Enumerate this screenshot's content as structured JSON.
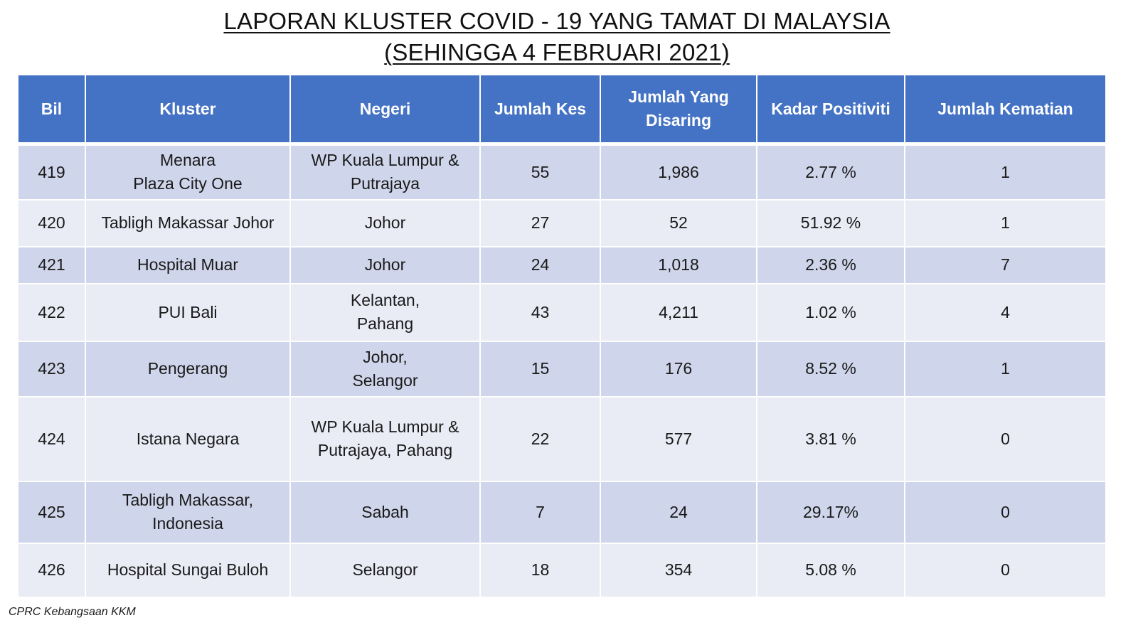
{
  "title": {
    "line1": "LAPORAN KLUSTER COVID - 19 YANG TAMAT DI MALAYSIA",
    "line2": "(SEHINGGA 4 FEBRUARI 2021)"
  },
  "table": {
    "headers": {
      "bil": "Bil",
      "kluster": "Kluster",
      "negeri": "Negeri",
      "jumlah_kes": "Jumlah Kes",
      "jumlah_disaring": "Jumlah Yang\nDisaring",
      "kadar_positiviti": "Kadar Positiviti",
      "jumlah_kematian": "Jumlah Kematian"
    },
    "rows": [
      {
        "bil": "419",
        "kluster": "Menara\nPlaza City One",
        "negeri": "WP Kuala Lumpur &\nPutrajaya",
        "jumlah_kes": "55",
        "jumlah_disaring": "1,986",
        "kadar_positiviti": "2.77 %",
        "jumlah_kematian": "1"
      },
      {
        "bil": "420",
        "kluster": "Tabligh Makassar Johor",
        "negeri": "Johor",
        "jumlah_kes": "27",
        "jumlah_disaring": "52",
        "kadar_positiviti": "51.92 %",
        "jumlah_kematian": "1"
      },
      {
        "bil": "421",
        "kluster": "Hospital Muar",
        "negeri": "Johor",
        "jumlah_kes": "24",
        "jumlah_disaring": "1,018",
        "kadar_positiviti": "2.36 %",
        "jumlah_kematian": "7"
      },
      {
        "bil": "422",
        "kluster": "PUI Bali",
        "negeri": "Kelantan,\nPahang",
        "jumlah_kes": "43",
        "jumlah_disaring": "4,211",
        "kadar_positiviti": "1.02 %",
        "jumlah_kematian": "4"
      },
      {
        "bil": "423",
        "kluster": "Pengerang",
        "negeri": "Johor,\nSelangor",
        "jumlah_kes": "15",
        "jumlah_disaring": "176",
        "kadar_positiviti": "8.52 %",
        "jumlah_kematian": "1"
      },
      {
        "bil": "424",
        "kluster": "Istana Negara",
        "negeri": "WP Kuala Lumpur &\nPutrajaya, Pahang",
        "jumlah_kes": "22",
        "jumlah_disaring": "577",
        "kadar_positiviti": "3.81 %",
        "jumlah_kematian": "0"
      },
      {
        "bil": "425",
        "kluster": "Tabligh Makassar,\nIndonesia",
        "negeri": "Sabah",
        "jumlah_kes": "7",
        "jumlah_disaring": "24",
        "kadar_positiviti": "29.17%",
        "jumlah_kematian": "0"
      },
      {
        "bil": "426",
        "kluster": "Hospital Sungai Buloh",
        "negeri": "Selangor",
        "jumlah_kes": "18",
        "jumlah_disaring": "354",
        "kadar_positiviti": "5.08 %",
        "jumlah_kematian": "0"
      }
    ]
  },
  "footer": "CPRC Kebangsaan KKM",
  "colors": {
    "header_bg": "#4472c4",
    "row_dark": "#cfd5ea",
    "row_light": "#e9ebf5"
  }
}
